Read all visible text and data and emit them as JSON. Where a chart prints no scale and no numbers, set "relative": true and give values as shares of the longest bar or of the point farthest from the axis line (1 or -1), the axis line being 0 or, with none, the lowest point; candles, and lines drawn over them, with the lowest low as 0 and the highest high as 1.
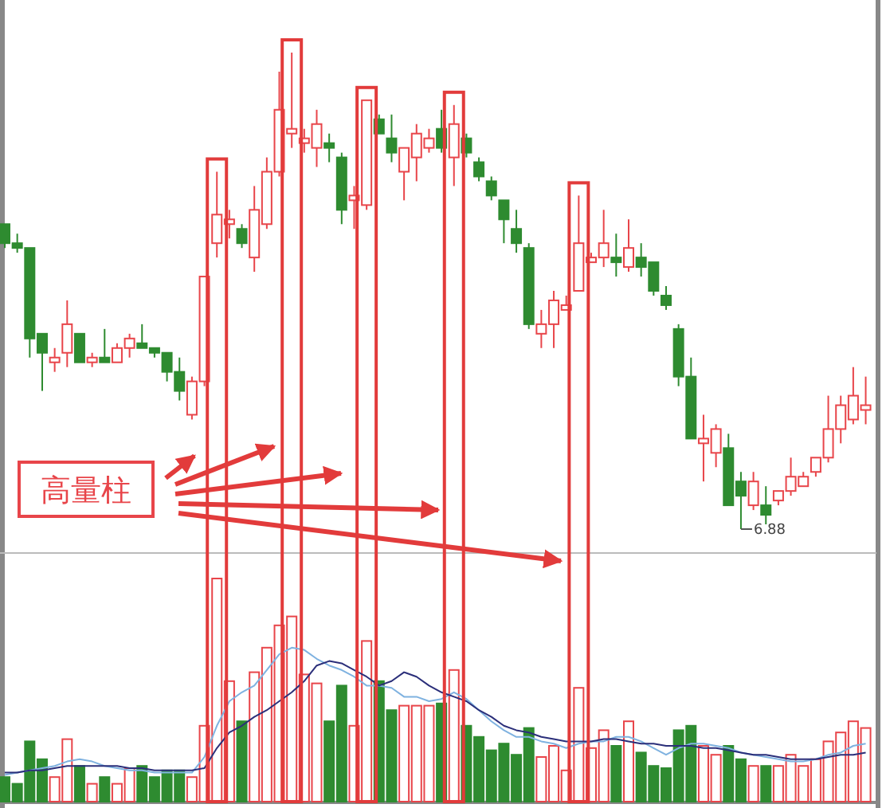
{
  "chart_data": [
    {
      "type": "candlestick",
      "relative": true,
      "categories": [
        null,
        null,
        null,
        null,
        null,
        null,
        null,
        null,
        null,
        null,
        null,
        null,
        null,
        null,
        null,
        null,
        null,
        null,
        null,
        null,
        null,
        null,
        null,
        null,
        null,
        null,
        null,
        null,
        null,
        null,
        null,
        null,
        null,
        null,
        null,
        null,
        null,
        null,
        null,
        null,
        null,
        null,
        null,
        null,
        null,
        null,
        null,
        null,
        null,
        null,
        null,
        null,
        null,
        null,
        null,
        null,
        null,
        null,
        null,
        null,
        null,
        null,
        null,
        null,
        null,
        null,
        null,
        null,
        null,
        null
      ],
      "ohlc": [
        [
          0.64,
          0.64,
          0.59,
          0.6
        ],
        [
          0.6,
          0.62,
          0.58,
          0.59
        ],
        [
          0.59,
          0.59,
          0.36,
          0.4
        ],
        [
          0.41,
          0.41,
          0.29,
          0.37
        ],
        [
          0.35,
          0.38,
          0.33,
          0.36
        ],
        [
          0.37,
          0.48,
          0.34,
          0.43
        ],
        [
          0.41,
          0.41,
          0.35,
          0.35
        ],
        [
          0.35,
          0.37,
          0.34,
          0.36
        ],
        [
          0.36,
          0.42,
          0.35,
          0.35
        ],
        [
          0.35,
          0.39,
          0.35,
          0.38
        ],
        [
          0.38,
          0.41,
          0.36,
          0.4
        ],
        [
          0.39,
          0.43,
          0.38,
          0.38
        ],
        [
          0.38,
          0.38,
          0.36,
          0.37
        ],
        [
          0.37,
          0.37,
          0.31,
          0.33
        ],
        [
          0.33,
          0.36,
          0.27,
          0.29
        ],
        [
          0.24,
          0.32,
          0.23,
          0.31
        ],
        [
          0.31,
          0.53,
          0.3,
          0.53
        ],
        [
          0.6,
          0.75,
          0.57,
          0.66
        ],
        [
          0.64,
          0.67,
          0.61,
          0.65
        ],
        [
          0.63,
          0.64,
          0.59,
          0.6
        ],
        [
          0.57,
          0.72,
          0.54,
          0.67
        ],
        [
          0.64,
          0.78,
          0.63,
          0.75
        ],
        [
          0.75,
          0.96,
          0.74,
          0.88
        ],
        [
          0.83,
          1,
          0.8,
          0.84
        ],
        [
          0.81,
          0.84,
          0.79,
          0.82
        ],
        [
          0.8,
          0.88,
          0.76,
          0.85
        ],
        [
          0.81,
          0.83,
          0.77,
          0.8
        ],
        [
          0.78,
          0.79,
          0.64,
          0.67
        ],
        [
          0.69,
          0.72,
          0.63,
          0.7
        ],
        [
          0.68,
          0.9,
          0.67,
          0.9
        ],
        [
          0.86,
          0.87,
          0.83,
          0.83
        ],
        [
          0.82,
          0.87,
          0.77,
          0.79
        ],
        [
          0.75,
          0.8,
          0.69,
          0.8
        ],
        [
          0.78,
          0.85,
          0.73,
          0.83
        ],
        [
          0.8,
          0.84,
          0.79,
          0.82
        ],
        [
          0.84,
          0.88,
          0.79,
          0.8
        ],
        [
          0.78,
          0.89,
          0.72,
          0.85
        ],
        [
          0.82,
          0.83,
          0.78,
          0.79
        ],
        [
          0.77,
          0.78,
          0.73,
          0.74
        ],
        [
          0.73,
          0.74,
          0.69,
          0.7
        ],
        [
          0.69,
          0.69,
          0.6,
          0.65
        ],
        [
          0.63,
          0.67,
          0.58,
          0.6
        ],
        [
          0.59,
          0.6,
          0.42,
          0.43
        ],
        [
          0.41,
          0.46,
          0.38,
          0.43
        ],
        [
          0.43,
          0.5,
          0.38,
          0.48
        ],
        [
          0.46,
          0.49,
          0.46,
          0.47
        ],
        [
          0.5,
          0.7,
          0.5,
          0.6
        ],
        [
          0.56,
          0.58,
          0.56,
          0.57
        ],
        [
          0.57,
          0.67,
          0.55,
          0.6
        ],
        [
          0.57,
          0.62,
          0.53,
          0.56
        ],
        [
          0.55,
          0.65,
          0.54,
          0.59
        ],
        [
          0.57,
          0.6,
          0.53,
          0.55
        ],
        [
          0.56,
          0.56,
          0.49,
          0.5
        ],
        [
          0.49,
          0.51,
          0.46,
          0.47
        ],
        [
          0.42,
          0.43,
          0.3,
          0.32
        ],
        [
          0.32,
          0.36,
          0.19,
          0.19
        ],
        [
          0.18,
          0.24,
          0.1,
          0.19
        ],
        [
          0.16,
          0.22,
          0.13,
          0.21
        ],
        [
          0.17,
          0.2,
          0.05,
          0.05
        ],
        [
          0.1,
          0.12,
          0,
          0.07
        ],
        [
          0.05,
          0.12,
          0.04,
          0.1
        ],
        [
          0.05,
          0.09,
          0.01,
          0.03
        ],
        [
          0.06,
          0.08,
          0.05,
          0.08
        ],
        [
          0.08,
          0.15,
          0.07,
          0.11
        ],
        [
          0.09,
          0.12,
          0.09,
          0.11
        ],
        [
          0.12,
          0.15,
          0.11,
          0.15
        ],
        [
          0.15,
          0.28,
          0.14,
          0.21
        ],
        [
          0.21,
          0.28,
          0.18,
          0.26
        ],
        [
          0.23,
          0.34,
          0.22,
          0.28
        ],
        [
          0.25,
          0.32,
          0.22,
          0.26
        ]
      ],
      "colors": [
        "#2e8b30",
        "#2e8b30",
        "#2e8b30",
        "#2e8b30",
        "#e8454a",
        "#e8454a",
        "#2e8b30",
        "#e8454a",
        "#2e8b30",
        "#e8454a",
        "#e8454a",
        "#2e8b30",
        "#2e8b30",
        "#2e8b30",
        "#2e8b30",
        "#e8454a",
        "#e8454a",
        "#e8454a",
        "#e8454a",
        "#2e8b30",
        "#e8454a",
        "#e8454a",
        "#e8454a",
        "#e8454a",
        "#e8454a",
        "#e8454a",
        "#2e8b30",
        "#2e8b30",
        "#e8454a",
        "#e8454a",
        "#2e8b30",
        "#2e8b30",
        "#e8454a",
        "#e8454a",
        "#e8454a",
        "#2e8b30",
        "#e8454a",
        "#2e8b30",
        "#2e8b30",
        "#2e8b30",
        "#2e8b30",
        "#2e8b30",
        "#2e8b30",
        "#e8454a",
        "#e8454a",
        "#e8454a",
        "#e8454a",
        "#e8454a",
        "#e8454a",
        "#2e8b30",
        "#e8454a",
        "#2e8b30",
        "#2e8b30",
        "#2e8b30",
        "#2e8b30",
        "#2e8b30",
        "#e8454a",
        "#e8454a",
        "#2e8b30",
        "#2e8b30",
        "#e8454a",
        "#2e8b30",
        "#e8454a",
        "#e8454a",
        "#e8454a",
        "#e8454a",
        "#e8454a",
        "#e8454a",
        "#e8454a",
        "#e8454a"
      ],
      "annotations": [
        "6.88",
        "高量柱"
      ]
    },
    {
      "type": "bar",
      "relative": true,
      "categories": [
        null,
        null,
        null,
        null,
        null,
        null,
        null,
        null,
        null,
        null,
        null,
        null,
        null,
        null,
        null,
        null,
        null,
        null,
        null,
        null,
        null,
        null,
        null,
        null,
        null,
        null,
        null,
        null,
        null,
        null,
        null,
        null,
        null,
        null,
        null,
        null,
        null,
        null,
        null,
        null,
        null,
        null,
        null,
        null,
        null,
        null,
        null,
        null,
        null,
        null,
        null,
        null,
        null,
        null,
        null,
        null,
        null,
        null,
        null,
        null,
        null,
        null,
        null,
        null,
        null,
        null,
        null,
        null,
        null,
        null
      ],
      "series": [
        {
          "type": "bar",
          "values": [
            0.11,
            0.08,
            0.27,
            0.19,
            0.11,
            0.28,
            0.16,
            0.08,
            0.11,
            0.08,
            0.15,
            0.16,
            0.11,
            0.14,
            0.14,
            0.11,
            0.34,
            1,
            0.54,
            0.36,
            0.58,
            0.69,
            0.79,
            0.83,
            0.57,
            0.53,
            0.36,
            0.52,
            0.34,
            0.72,
            0.54,
            0.41,
            0.43,
            0.43,
            0.43,
            0.44,
            0.59,
            0.34,
            0.29,
            0.23,
            0.26,
            0.21,
            0.33,
            0.2,
            0.25,
            0.14,
            0.51,
            0.24,
            0.32,
            0.25,
            0.36,
            0.22,
            0.16,
            0.15,
            0.32,
            0.34,
            0.25,
            0.21,
            0.25,
            0.19,
            0.16,
            0.16,
            0.16,
            0.21,
            0.16,
            0.19,
            0.27,
            0.31,
            0.36,
            0.33
          ],
          "colors": [
            "#2e8b30",
            "#2e8b30",
            "#2e8b30",
            "#2e8b30",
            "#e8454a",
            "#e8454a",
            "#2e8b30",
            "#e8454a",
            "#2e8b30",
            "#e8454a",
            "#e8454a",
            "#2e8b30",
            "#2e8b30",
            "#2e8b30",
            "#2e8b30",
            "#e8454a",
            "#e8454a",
            "#e8454a",
            "#e8454a",
            "#2e8b30",
            "#e8454a",
            "#e8454a",
            "#e8454a",
            "#e8454a",
            "#e8454a",
            "#e8454a",
            "#2e8b30",
            "#2e8b30",
            "#e8454a",
            "#e8454a",
            "#2e8b30",
            "#2e8b30",
            "#e8454a",
            "#e8454a",
            "#e8454a",
            "#2e8b30",
            "#e8454a",
            "#2e8b30",
            "#2e8b30",
            "#2e8b30",
            "#2e8b30",
            "#2e8b30",
            "#2e8b30",
            "#e8454a",
            "#e8454a",
            "#e8454a",
            "#e8454a",
            "#e8454a",
            "#e8454a",
            "#2e8b30",
            "#e8454a",
            "#2e8b30",
            "#2e8b30",
            "#2e8b30",
            "#2e8b30",
            "#2e8b30",
            "#e8454a",
            "#e8454a",
            "#2e8b30",
            "#2e8b30",
            "#e8454a",
            "#2e8b30",
            "#e8454a",
            "#e8454a",
            "#e8454a",
            "#e8454a",
            "#e8454a",
            "#e8454a",
            "#e8454a",
            "#e8454a"
          ]
        },
        {
          "type": "line",
          "color": "#7fb2e0",
          "values": [
            0.12,
            0.13,
            0.14,
            0.15,
            0.16,
            0.18,
            0.19,
            0.18,
            0.16,
            0.15,
            0.14,
            0.14,
            0.13,
            0.13,
            0.13,
            0.13,
            0.2,
            0.34,
            0.45,
            0.49,
            0.52,
            0.59,
            0.66,
            0.69,
            0.68,
            0.64,
            0.61,
            0.59,
            0.56,
            0.52,
            0.52,
            0.51,
            0.47,
            0.47,
            0.45,
            0.46,
            0.49,
            0.46,
            0.41,
            0.36,
            0.32,
            0.29,
            0.29,
            0.27,
            0.26,
            0.24,
            0.26,
            0.27,
            0.27,
            0.29,
            0.29,
            0.27,
            0.24,
            0.21,
            0.24,
            0.26,
            0.26,
            0.25,
            0.24,
            0.22,
            0.21,
            0.2,
            0.19,
            0.18,
            0.18,
            0.19,
            0.21,
            0.22,
            0.25,
            0.26
          ]
        },
        {
          "type": "line",
          "color": "#2b2f7a",
          "values": [
            0.13,
            0.13,
            0.14,
            0.14,
            0.15,
            0.16,
            0.16,
            0.16,
            0.16,
            0.16,
            0.15,
            0.15,
            0.14,
            0.14,
            0.14,
            0.14,
            0.15,
            0.24,
            0.31,
            0.34,
            0.38,
            0.41,
            0.45,
            0.49,
            0.54,
            0.61,
            0.63,
            0.62,
            0.59,
            0.56,
            0.52,
            0.54,
            0.58,
            0.56,
            0.52,
            0.49,
            0.47,
            0.45,
            0.41,
            0.38,
            0.34,
            0.32,
            0.31,
            0.29,
            0.28,
            0.27,
            0.27,
            0.27,
            0.28,
            0.28,
            0.27,
            0.26,
            0.26,
            0.25,
            0.25,
            0.25,
            0.24,
            0.24,
            0.23,
            0.22,
            0.21,
            0.21,
            0.2,
            0.19,
            0.19,
            0.19,
            0.2,
            0.21,
            0.21,
            0.22
          ]
        }
      ]
    }
  ]
}
